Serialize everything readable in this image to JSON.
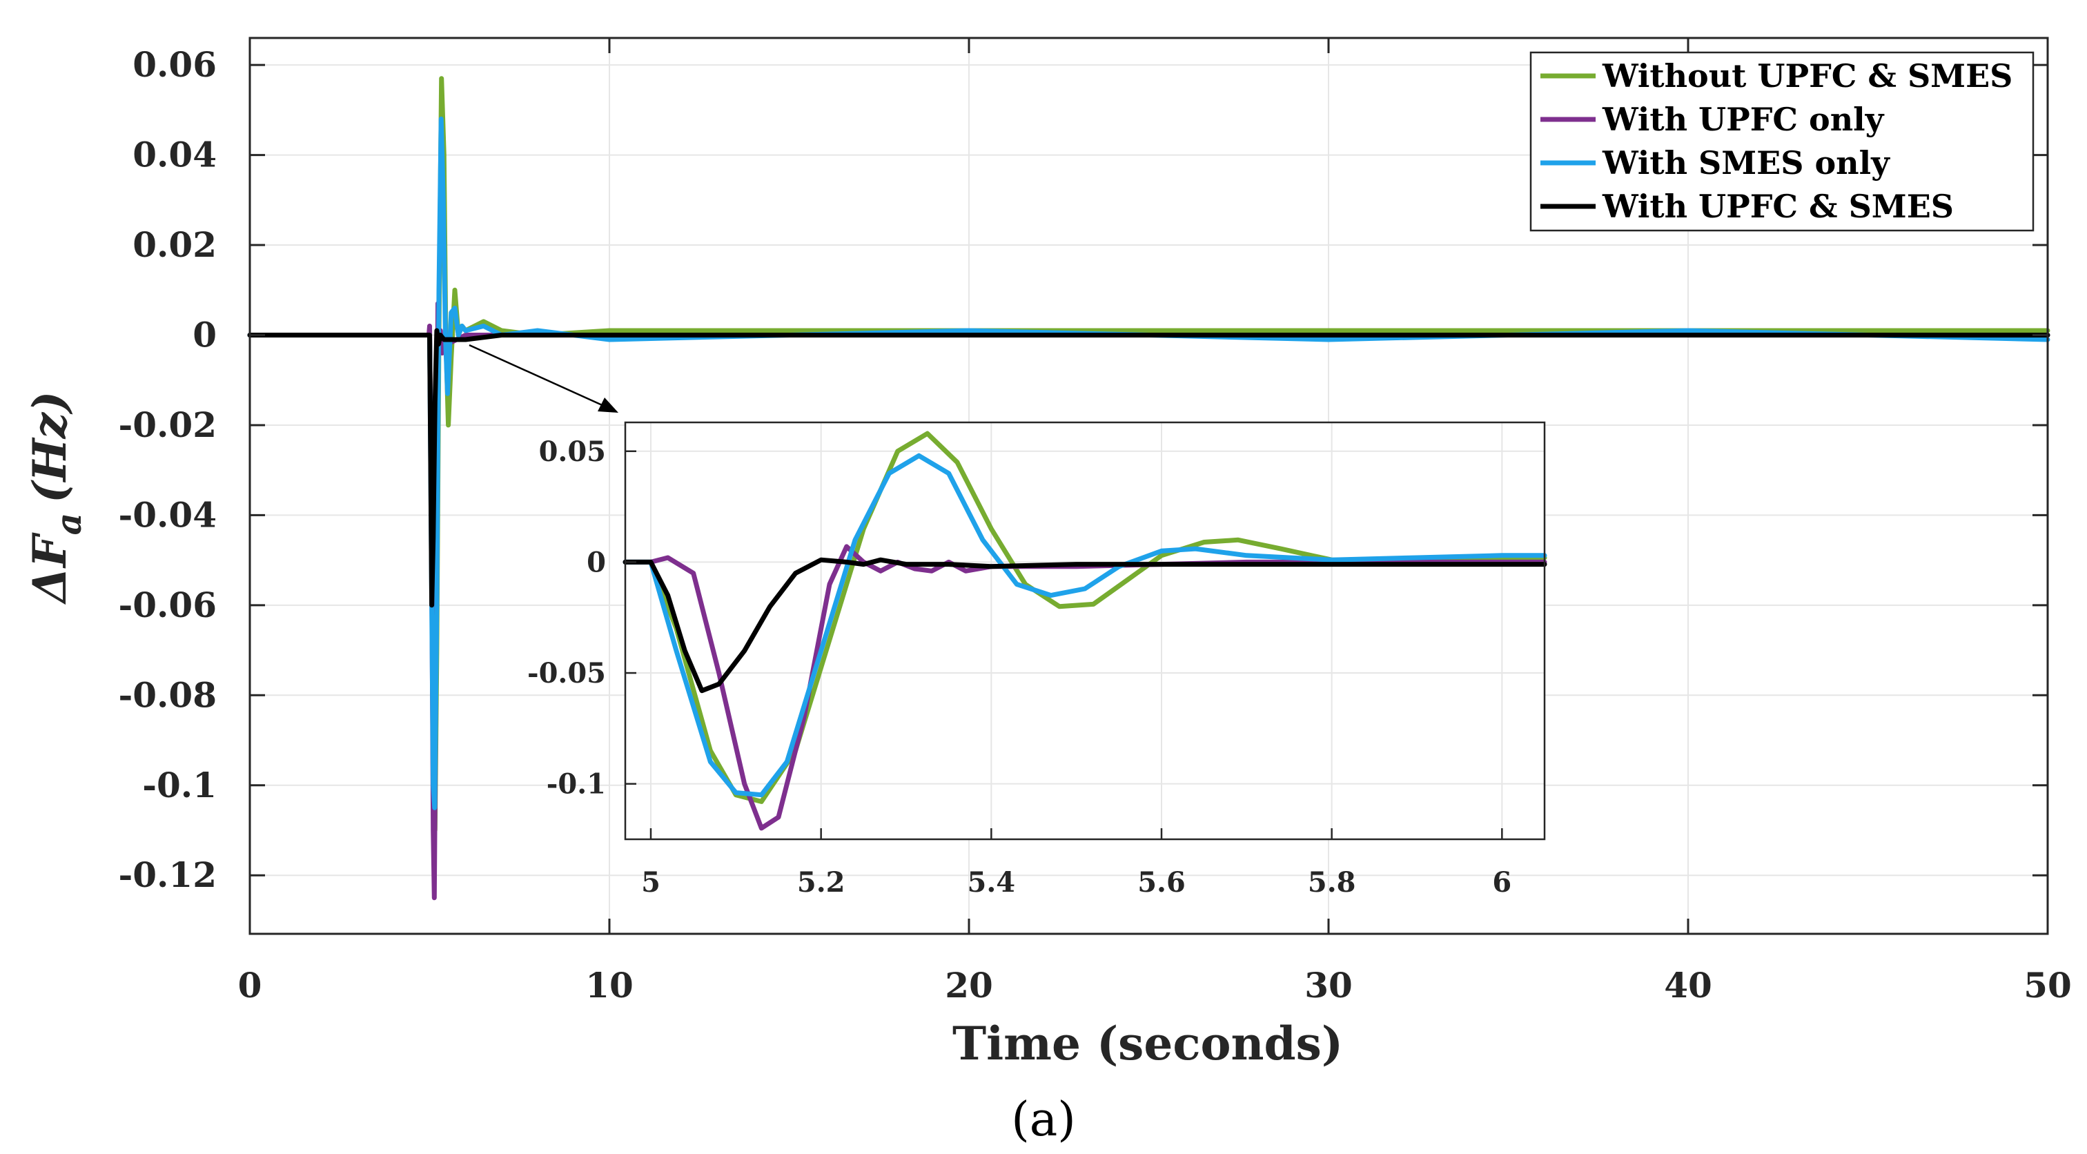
{
  "chart_data": {
    "type": "line",
    "caption": "(a)",
    "xlabel": "Time (seconds)",
    "ylabel": "ΔF",
    "ylabel_sub": "a",
    "ylabel_unit": "(Hz)",
    "xlim": [
      0,
      50
    ],
    "ylim": [
      -0.133,
      0.066
    ],
    "xticks": [
      0,
      10,
      20,
      30,
      40,
      50
    ],
    "xtick_labels": [
      "0",
      "10",
      "20",
      "30",
      "40",
      "50"
    ],
    "yticks": [
      0.06,
      0.04,
      0.02,
      0,
      -0.02,
      -0.04,
      -0.06,
      -0.08,
      -0.1,
      -0.12
    ],
    "ytick_labels": [
      "0.06",
      "0.04",
      "0.02",
      "0",
      "-0.02",
      "-0.04",
      "-0.06",
      "-0.08",
      "-0.1",
      "-0.12"
    ],
    "grid": true,
    "legend_position": "top-right",
    "series": [
      {
        "name": "Without UPFC & SMES",
        "color": "#77AC30",
        "points": [
          [
            0,
            0
          ],
          [
            5.0,
            0
          ],
          [
            5.05,
            -0.04
          ],
          [
            5.1,
            -0.092
          ],
          [
            5.15,
            -0.11
          ],
          [
            5.2,
            -0.07
          ],
          [
            5.26,
            0.0
          ],
          [
            5.33,
            0.057
          ],
          [
            5.4,
            0.04
          ],
          [
            5.45,
            0.0
          ],
          [
            5.52,
            -0.02
          ],
          [
            5.6,
            -0.005
          ],
          [
            5.7,
            0.01
          ],
          [
            5.8,
            0.0
          ],
          [
            5.9,
            0.002
          ],
          [
            6.0,
            0.001
          ],
          [
            6.5,
            0.003
          ],
          [
            7,
            0.001
          ],
          [
            8,
            0
          ],
          [
            10,
            0.001
          ],
          [
            20,
            0.001
          ],
          [
            30,
            0.001
          ],
          [
            40,
            0.001
          ],
          [
            50,
            0.001
          ]
        ]
      },
      {
        "name": "With UPFC only",
        "color": "#7E2F8E",
        "points": [
          [
            0,
            0
          ],
          [
            4.98,
            0
          ],
          [
            5.0,
            0.002
          ],
          [
            5.05,
            -0.04
          ],
          [
            5.1,
            -0.11
          ],
          [
            5.13,
            -0.125
          ],
          [
            5.18,
            -0.07
          ],
          [
            5.23,
            0.007
          ],
          [
            5.26,
            -0.003
          ],
          [
            5.3,
            0.001
          ],
          [
            5.35,
            -0.004
          ],
          [
            5.4,
            -0.002
          ],
          [
            5.5,
            -0.002
          ],
          [
            6,
            0
          ],
          [
            10,
            0
          ],
          [
            20,
            0
          ],
          [
            30,
            0
          ],
          [
            40,
            0
          ],
          [
            50,
            0
          ]
        ]
      },
      {
        "name": "With SMES only",
        "color": "#1FA2EA",
        "points": [
          [
            0,
            0
          ],
          [
            5.0,
            0
          ],
          [
            5.05,
            -0.05
          ],
          [
            5.1,
            -0.1
          ],
          [
            5.14,
            -0.105
          ],
          [
            5.2,
            -0.06
          ],
          [
            5.26,
            0.01
          ],
          [
            5.32,
            0.048
          ],
          [
            5.38,
            0.03
          ],
          [
            5.44,
            0.0
          ],
          [
            5.5,
            -0.013
          ],
          [
            5.6,
            0.005
          ],
          [
            5.7,
            0.006
          ],
          [
            5.8,
            0.0
          ],
          [
            5.9,
            0.002
          ],
          [
            6.0,
            0.001
          ],
          [
            6.5,
            0.002
          ],
          [
            7,
            0.0
          ],
          [
            8,
            0.001
          ],
          [
            10,
            -0.001
          ],
          [
            20,
            0.001
          ],
          [
            30,
            -0.001
          ],
          [
            40,
            0.001
          ],
          [
            50,
            -0.001
          ]
        ]
      },
      {
        "name": "With UPFC & SMES",
        "color": "#000000",
        "points": [
          [
            0,
            0
          ],
          [
            5.0,
            0
          ],
          [
            5.03,
            -0.03
          ],
          [
            5.06,
            -0.06
          ],
          [
            5.1,
            -0.045
          ],
          [
            5.15,
            -0.015
          ],
          [
            5.2,
            0.001
          ],
          [
            5.25,
            -0.002
          ],
          [
            5.3,
            0.0
          ],
          [
            5.4,
            -0.001
          ],
          [
            5.6,
            -0.001
          ],
          [
            6.0,
            -0.001
          ],
          [
            7,
            0
          ],
          [
            10,
            0
          ],
          [
            20,
            0
          ],
          [
            30,
            0
          ],
          [
            40,
            0
          ],
          [
            50,
            0
          ]
        ]
      }
    ],
    "inset": {
      "xlim": [
        4.97,
        6.05
      ],
      "ylim": [
        -0.125,
        0.063
      ],
      "xticks": [
        5,
        5.2,
        5.4,
        5.6,
        5.8,
        6
      ],
      "xtick_labels": [
        "5",
        "5.2",
        "5.4",
        "5.6",
        "5.8",
        "6"
      ],
      "yticks": [
        0.05,
        0,
        -0.05,
        -0.1
      ],
      "ytick_labels": [
        "0.05",
        "0",
        "-0.05",
        "-0.1"
      ],
      "series": [
        {
          "name": "Without UPFC & SMES",
          "color": "#77AC30",
          "points": [
            [
              4.97,
              0
            ],
            [
              5.0,
              0
            ],
            [
              5.03,
              -0.03
            ],
            [
              5.07,
              -0.085
            ],
            [
              5.1,
              -0.105
            ],
            [
              5.13,
              -0.108
            ],
            [
              5.17,
              -0.085
            ],
            [
              5.21,
              -0.035
            ],
            [
              5.25,
              0.015
            ],
            [
              5.29,
              0.05
            ],
            [
              5.325,
              0.058
            ],
            [
              5.36,
              0.045
            ],
            [
              5.4,
              0.015
            ],
            [
              5.44,
              -0.01
            ],
            [
              5.48,
              -0.02
            ],
            [
              5.52,
              -0.019
            ],
            [
              5.56,
              -0.008
            ],
            [
              5.6,
              0.003
            ],
            [
              5.65,
              0.009
            ],
            [
              5.69,
              0.01
            ],
            [
              5.74,
              0.006
            ],
            [
              5.8,
              0.001
            ],
            [
              5.9,
              0.0
            ],
            [
              6.0,
              0.002
            ],
            [
              6.05,
              0.002
            ]
          ]
        },
        {
          "name": "With UPFC only",
          "color": "#7E2F8E",
          "points": [
            [
              4.97,
              0
            ],
            [
              5.0,
              0
            ],
            [
              5.02,
              0.002
            ],
            [
              5.05,
              -0.005
            ],
            [
              5.08,
              -0.05
            ],
            [
              5.11,
              -0.1
            ],
            [
              5.13,
              -0.12
            ],
            [
              5.15,
              -0.115
            ],
            [
              5.18,
              -0.07
            ],
            [
              5.21,
              -0.01
            ],
            [
              5.23,
              0.007
            ],
            [
              5.25,
              0.0
            ],
            [
              5.27,
              -0.004
            ],
            [
              5.29,
              0.0
            ],
            [
              5.31,
              -0.003
            ],
            [
              5.33,
              -0.004
            ],
            [
              5.35,
              0.0
            ],
            [
              5.37,
              -0.004
            ],
            [
              5.4,
              -0.002
            ],
            [
              5.45,
              -0.002
            ],
            [
              5.5,
              -0.002
            ],
            [
              5.6,
              -0.001
            ],
            [
              5.7,
              0.0
            ],
            [
              6.05,
              0
            ]
          ]
        },
        {
          "name": "With SMES only",
          "color": "#1FA2EA",
          "points": [
            [
              4.97,
              0
            ],
            [
              5.0,
              0
            ],
            [
              5.03,
              -0.04
            ],
            [
              5.07,
              -0.09
            ],
            [
              5.1,
              -0.104
            ],
            [
              5.13,
              -0.105
            ],
            [
              5.16,
              -0.09
            ],
            [
              5.2,
              -0.04
            ],
            [
              5.24,
              0.01
            ],
            [
              5.28,
              0.04
            ],
            [
              5.315,
              0.048
            ],
            [
              5.35,
              0.04
            ],
            [
              5.39,
              0.01
            ],
            [
              5.43,
              -0.01
            ],
            [
              5.47,
              -0.015
            ],
            [
              5.51,
              -0.012
            ],
            [
              5.55,
              -0.002
            ],
            [
              5.6,
              0.005
            ],
            [
              5.64,
              0.006
            ],
            [
              5.7,
              0.003
            ],
            [
              5.8,
              0.001
            ],
            [
              5.9,
              0.002
            ],
            [
              6.0,
              0.003
            ],
            [
              6.05,
              0.003
            ]
          ]
        },
        {
          "name": "With UPFC & SMES",
          "color": "#000000",
          "points": [
            [
              4.97,
              0
            ],
            [
              5.0,
              0
            ],
            [
              5.02,
              -0.015
            ],
            [
              5.04,
              -0.04
            ],
            [
              5.06,
              -0.058
            ],
            [
              5.08,
              -0.055
            ],
            [
              5.11,
              -0.04
            ],
            [
              5.14,
              -0.02
            ],
            [
              5.17,
              -0.005
            ],
            [
              5.2,
              0.001
            ],
            [
              5.23,
              0.0
            ],
            [
              5.25,
              -0.001
            ],
            [
              5.27,
              0.001
            ],
            [
              5.3,
              -0.001
            ],
            [
              5.35,
              -0.001
            ],
            [
              5.4,
              -0.002
            ],
            [
              5.5,
              -0.001
            ],
            [
              5.6,
              -0.001
            ],
            [
              5.7,
              -0.001
            ],
            [
              5.8,
              -0.001
            ],
            [
              6.0,
              -0.001
            ],
            [
              6.05,
              -0.001
            ]
          ]
        }
      ]
    }
  }
}
